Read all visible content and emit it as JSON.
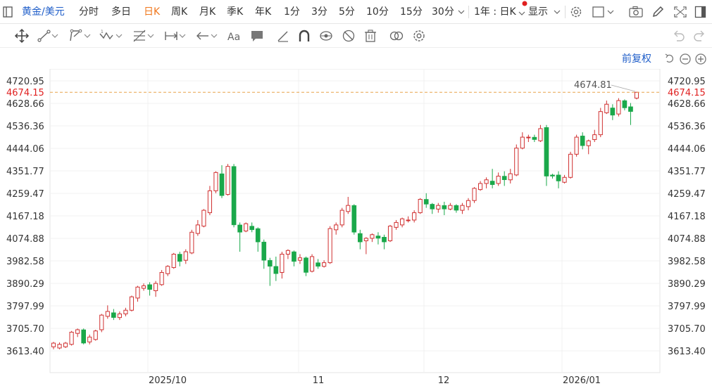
{
  "topbar": {
    "symbol": "黄金/美元",
    "periods": [
      "分时",
      "多日",
      "日K",
      "周K",
      "月K",
      "季K",
      "年K",
      "1分",
      "3分",
      "5分",
      "10分",
      "15分",
      "30分"
    ],
    "active_period": "日K",
    "range_select": "1年 : 日K",
    "display": "显示"
  },
  "icons": [
    "panel-icon",
    "crosshair-icon",
    "line-icon",
    "polyline-icon",
    "wave-icon",
    "fib-icon",
    "measure-icon",
    "arrow-icon",
    "text-icon",
    "comment-icon",
    "pen-icon",
    "magnet-icon",
    "eye-icon",
    "hide-icon",
    "trash-icon",
    "link-icon",
    "settings-icon",
    "camera-icon",
    "edit-icon",
    "fullscreen-icon",
    "layout-icon",
    "undo-icon",
    "redo-icon"
  ],
  "adjust_label": "前复权",
  "accent_colors": {
    "up": "#d03030",
    "down": "#1aa84a",
    "current": "#e8a34a",
    "accent": "#f0781e",
    "link": "#1f5ec9"
  },
  "chart_data": {
    "type": "candlestick",
    "y_ticks": [
      "4720.95",
      "4628.66",
      "4536.36",
      "4444.06",
      "4351.77",
      "4259.47",
      "4167.18",
      "4074.88",
      "3982.58",
      "3890.29",
      "3797.99",
      "3705.70",
      "3613.40"
    ],
    "ylim": [
      3575,
      4780
    ],
    "x_ticks": [
      "2025/10",
      "11",
      "12",
      "2026/01"
    ],
    "current_price": "4674.15",
    "high_label": "4674.81",
    "candles": [
      [
        3630,
        3645,
        3620,
        3650
      ],
      [
        3625,
        3640,
        3620,
        3648
      ],
      [
        3630,
        3645,
        3625,
        3650
      ],
      [
        3640,
        3690,
        3635,
        3695
      ],
      [
        3685,
        3700,
        3670,
        3705
      ],
      [
        3700,
        3645,
        3640,
        3705
      ],
      [
        3650,
        3670,
        3640,
        3680
      ],
      [
        3660,
        3695,
        3655,
        3700
      ],
      [
        3700,
        3760,
        3690,
        3765
      ],
      [
        3755,
        3775,
        3745,
        3800
      ],
      [
        3770,
        3750,
        3740,
        3785
      ],
      [
        3750,
        3765,
        3740,
        3775
      ],
      [
        3765,
        3780,
        3755,
        3790
      ],
      [
        3780,
        3835,
        3775,
        3840
      ],
      [
        3830,
        3875,
        3815,
        3880
      ],
      [
        3870,
        3880,
        3860,
        3890
      ],
      [
        3885,
        3865,
        3840,
        3895
      ],
      [
        3860,
        3890,
        3835,
        3900
      ],
      [
        3885,
        3935,
        3880,
        3945
      ],
      [
        3930,
        3960,
        3920,
        3965
      ],
      [
        3955,
        4010,
        3950,
        4015
      ],
      [
        4010,
        3980,
        3960,
        4020
      ],
      [
        3985,
        4020,
        3970,
        4030
      ],
      [
        4015,
        4100,
        4010,
        4110
      ],
      [
        4095,
        4130,
        4085,
        4150
      ],
      [
        4125,
        4190,
        4120,
        4195
      ],
      [
        4180,
        4270,
        4170,
        4290
      ],
      [
        4270,
        4345,
        4260,
        4350
      ],
      [
        4340,
        4250,
        4240,
        4375
      ],
      [
        4255,
        4370,
        4250,
        4380
      ],
      [
        4370,
        4130,
        4120,
        4380
      ],
      [
        4130,
        4100,
        4020,
        4140
      ],
      [
        4105,
        4135,
        4100,
        4140
      ],
      [
        4125,
        4110,
        4100,
        4140
      ],
      [
        4115,
        4060,
        4020,
        4120
      ],
      [
        4060,
        3985,
        3950,
        4070
      ],
      [
        3985,
        3960,
        3880,
        3995
      ],
      [
        3960,
        3930,
        3900,
        4000
      ],
      [
        3935,
        4010,
        3910,
        4020
      ],
      [
        4010,
        4025,
        3990,
        4030
      ],
      [
        4020,
        3980,
        3960,
        4025
      ],
      [
        3985,
        3995,
        3970,
        4010
      ],
      [
        3995,
        3935,
        3920,
        4000
      ],
      [
        3940,
        4000,
        3935,
        4010
      ],
      [
        3975,
        3960,
        3950,
        3990
      ],
      [
        3960,
        3975,
        3955,
        3985
      ],
      [
        3975,
        4115,
        3970,
        4125
      ],
      [
        4110,
        4130,
        4090,
        4140
      ],
      [
        4130,
        4190,
        4120,
        4200
      ],
      [
        4185,
        4210,
        4175,
        4245
      ],
      [
        4210,
        4100,
        4090,
        4215
      ],
      [
        4095,
        4060,
        4030,
        4110
      ],
      [
        4065,
        4075,
        4010,
        4080
      ],
      [
        4075,
        4090,
        4060,
        4095
      ],
      [
        4085,
        4075,
        4050,
        4100
      ],
      [
        4080,
        4060,
        4030,
        4090
      ],
      [
        4065,
        4125,
        4060,
        4130
      ],
      [
        4120,
        4140,
        4110,
        4150
      ],
      [
        4130,
        4155,
        4120,
        4160
      ],
      [
        4150,
        4150,
        4140,
        4165
      ],
      [
        4150,
        4180,
        4140,
        4190
      ],
      [
        4180,
        4235,
        4175,
        4240
      ],
      [
        4235,
        4215,
        4200,
        4260
      ],
      [
        4215,
        4195,
        4175,
        4220
      ],
      [
        4195,
        4210,
        4180,
        4220
      ],
      [
        4210,
        4195,
        4170,
        4225
      ],
      [
        4195,
        4210,
        4190,
        4220
      ],
      [
        4210,
        4190,
        4180,
        4215
      ],
      [
        4190,
        4210,
        4175,
        4220
      ],
      [
        4205,
        4230,
        4190,
        4240
      ],
      [
        4230,
        4280,
        4220,
        4285
      ],
      [
        4275,
        4300,
        4270,
        4310
      ],
      [
        4300,
        4315,
        4280,
        4325
      ],
      [
        4310,
        4295,
        4280,
        4360
      ],
      [
        4300,
        4330,
        4290,
        4345
      ],
      [
        4330,
        4315,
        4290,
        4350
      ],
      [
        4315,
        4340,
        4300,
        4360
      ],
      [
        4335,
        4445,
        4330,
        4460
      ],
      [
        4445,
        4490,
        4440,
        4510
      ],
      [
        4490,
        4490,
        4470,
        4500
      ],
      [
        4490,
        4480,
        4470,
        4500
      ],
      [
        4475,
        4525,
        4470,
        4540
      ],
      [
        4530,
        4330,
        4290,
        4540
      ],
      [
        4335,
        4330,
        4320,
        4340
      ],
      [
        4335,
        4310,
        4280,
        4350
      ],
      [
        4305,
        4325,
        4300,
        4335
      ],
      [
        4325,
        4420,
        4320,
        4430
      ],
      [
        4420,
        4490,
        4410,
        4500
      ],
      [
        4495,
        4455,
        4440,
        4510
      ],
      [
        4455,
        4475,
        4420,
        4480
      ],
      [
        4480,
        4500,
        4470,
        4520
      ],
      [
        4500,
        4595,
        4490,
        4610
      ],
      [
        4590,
        4625,
        4585,
        4640
      ],
      [
        4610,
        4580,
        4560,
        4625
      ],
      [
        4585,
        4640,
        4575,
        4650
      ],
      [
        4640,
        4610,
        4600,
        4645
      ],
      [
        4615,
        4595,
        4540,
        4630
      ],
      [
        4650,
        4674,
        4645,
        4676
      ]
    ]
  }
}
